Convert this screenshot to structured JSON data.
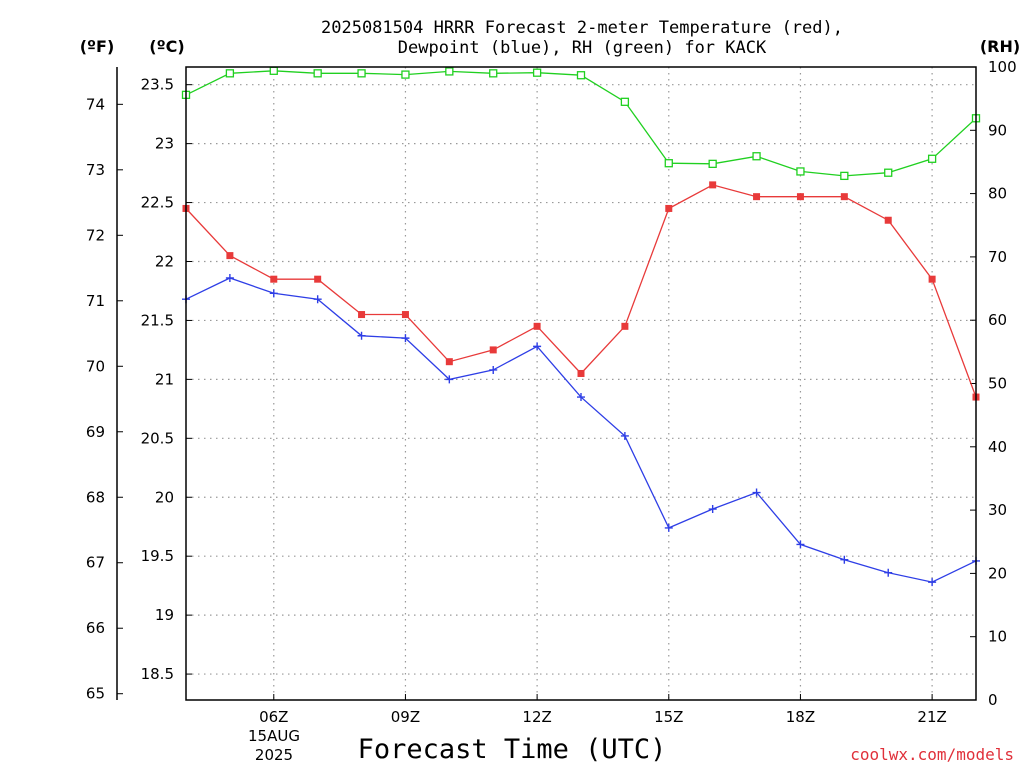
{
  "chart_data": {
    "type": "line",
    "title_line1": "2025081504 HRRR Forecast 2-meter Temperature (red),",
    "title_line2": "Dewpoint (blue), RH (green) for KACK",
    "xlabel": "Forecast Time (UTC)",
    "date_label_1": "15AUG",
    "date_label_2": "2025",
    "credit": "coolwx.com/models",
    "unit_left_f": "(ºF)",
    "unit_left_c": "(ºC)",
    "unit_right": "(RH)",
    "x_hours": [
      4,
      5,
      6,
      7,
      8,
      9,
      10,
      11,
      12,
      13,
      14,
      15,
      16,
      17,
      18,
      19,
      20,
      21,
      22
    ],
    "x_ticks": [
      {
        "hour": 6,
        "label": "06Z"
      },
      {
        "hour": 9,
        "label": "09Z"
      },
      {
        "hour": 12,
        "label": "12Z"
      },
      {
        "hour": 15,
        "label": "15Z"
      },
      {
        "hour": 18,
        "label": "18Z"
      },
      {
        "hour": 21,
        "label": "21Z"
      }
    ],
    "xlim": [
      4,
      22
    ],
    "c_ticks": [
      "18.5",
      "19",
      "19.5",
      "20",
      "20.5",
      "21",
      "21.5",
      "22",
      "22.5",
      "23",
      "23.5"
    ],
    "c_lim": [
      18.28,
      23.65
    ],
    "f_ticks": [
      "65",
      "66",
      "67",
      "68",
      "69",
      "70",
      "71",
      "72",
      "73",
      "74"
    ],
    "rh_ticks": [
      "0",
      "10",
      "20",
      "30",
      "40",
      "50",
      "60",
      "70",
      "80",
      "90",
      "100"
    ],
    "rh_lim": [
      0,
      100
    ],
    "grid": true,
    "series": [
      {
        "name": "Temperature",
        "axis": "C",
        "color": "#e83a3a",
        "marker": "filled-square",
        "values": [
          22.45,
          22.05,
          21.85,
          21.85,
          21.55,
          21.55,
          21.15,
          21.25,
          21.45,
          21.05,
          21.45,
          22.45,
          22.65,
          22.55,
          22.55,
          22.55,
          22.35,
          21.85,
          20.85
        ]
      },
      {
        "name": "Dewpoint",
        "axis": "C",
        "color": "#2e3ee6",
        "marker": "plus",
        "values": [
          21.68,
          21.86,
          21.73,
          21.68,
          21.37,
          21.35,
          21.0,
          21.08,
          21.28,
          20.85,
          20.52,
          19.74,
          19.9,
          20.04,
          19.6,
          19.47,
          19.36,
          19.28,
          19.46
        ]
      },
      {
        "name": "RH",
        "axis": "RH",
        "color": "#20d020",
        "marker": "open-square",
        "values": [
          95.6,
          99.0,
          99.4,
          99.0,
          99.0,
          98.8,
          99.3,
          99.0,
          99.1,
          98.7,
          94.5,
          84.8,
          84.7,
          85.9,
          83.5,
          82.8,
          83.3,
          85.5,
          91.9
        ]
      }
    ]
  }
}
